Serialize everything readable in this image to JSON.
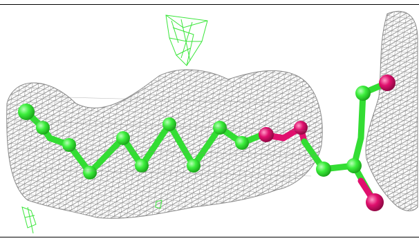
{
  "figure": {
    "subject": "molecular-model-in-electron-density-mesh",
    "colors": {
      "background": "#ffffff",
      "mesh": "#7a7a7a",
      "mesh_green": "#39e639",
      "carbon": "#33ee33",
      "oxygen": "#e0106e",
      "border": "#000000"
    }
  }
}
